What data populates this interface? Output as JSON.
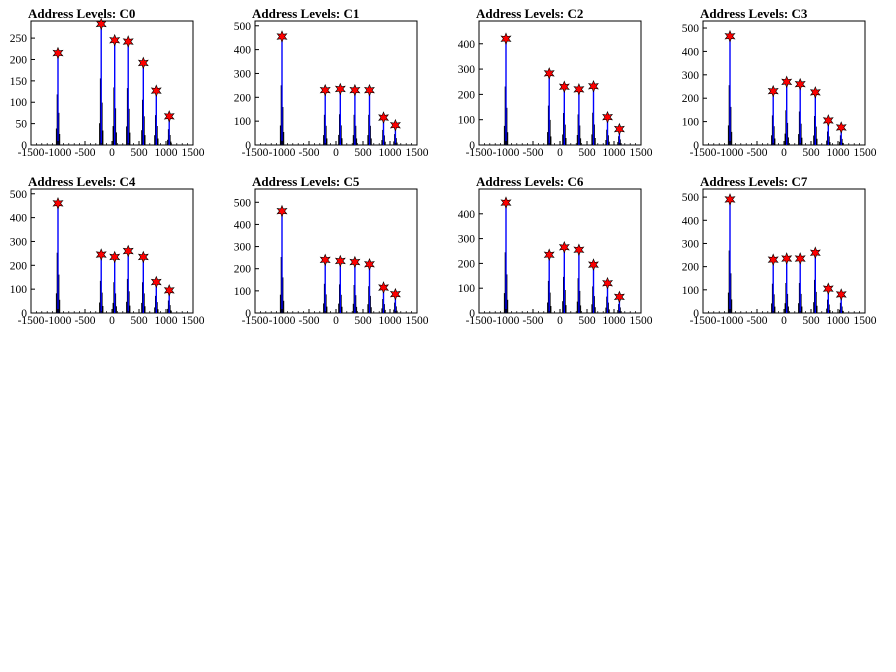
{
  "chart_data": [
    {
      "type": "histogram",
      "title": "Address Levels: C0",
      "xlim": [
        -1500,
        1500
      ],
      "ylim": [
        0,
        290
      ],
      "xticks": [
        "-1500",
        "-1000",
        "-500",
        "0",
        "500",
        "1000",
        "1500"
      ],
      "yticks": [
        "0",
        "50",
        "100",
        "150",
        "200",
        "250"
      ],
      "peaks": [
        {
          "x": -1000,
          "y": 215
        },
        {
          "x": -200,
          "y": 283
        },
        {
          "x": 50,
          "y": 245
        },
        {
          "x": 300,
          "y": 242
        },
        {
          "x": 580,
          "y": 192
        },
        {
          "x": 820,
          "y": 127
        },
        {
          "x": 1060,
          "y": 67
        }
      ]
    },
    {
      "type": "histogram",
      "title": "Address Levels: C1",
      "xlim": [
        -1500,
        1500
      ],
      "ylim": [
        0,
        520
      ],
      "xticks": [
        "-1500",
        "-1000",
        "-500",
        "0",
        "500",
        "1000",
        "1500"
      ],
      "yticks": [
        "0",
        "100",
        "200",
        "300",
        "400",
        "500"
      ],
      "peaks": [
        {
          "x": -1000,
          "y": 455
        },
        {
          "x": -200,
          "y": 230
        },
        {
          "x": 80,
          "y": 235
        },
        {
          "x": 350,
          "y": 230
        },
        {
          "x": 620,
          "y": 230
        },
        {
          "x": 880,
          "y": 115
        },
        {
          "x": 1100,
          "y": 83
        }
      ]
    },
    {
      "type": "histogram",
      "title": "Address Levels: C2",
      "xlim": [
        -1500,
        1500
      ],
      "ylim": [
        0,
        490
      ],
      "xticks": [
        "-1500",
        "-1000",
        "-500",
        "0",
        "500",
        "1000",
        "1500"
      ],
      "yticks": [
        "0",
        "100",
        "200",
        "300",
        "400"
      ],
      "peaks": [
        {
          "x": -1000,
          "y": 420
        },
        {
          "x": -200,
          "y": 283
        },
        {
          "x": 80,
          "y": 230
        },
        {
          "x": 350,
          "y": 220
        },
        {
          "x": 620,
          "y": 232
        },
        {
          "x": 880,
          "y": 110
        },
        {
          "x": 1100,
          "y": 63
        }
      ]
    },
    {
      "type": "histogram",
      "title": "Address Levels: C3",
      "xlim": [
        -1500,
        1500
      ],
      "ylim": [
        0,
        530
      ],
      "xticks": [
        "-1500",
        "-1000",
        "-500",
        "0",
        "500",
        "1000",
        "1500"
      ],
      "yticks": [
        "0",
        "100",
        "200",
        "300",
        "400",
        "500"
      ],
      "peaks": [
        {
          "x": -1000,
          "y": 465
        },
        {
          "x": -200,
          "y": 230
        },
        {
          "x": 50,
          "y": 270
        },
        {
          "x": 300,
          "y": 260
        },
        {
          "x": 580,
          "y": 225
        },
        {
          "x": 820,
          "y": 105
        },
        {
          "x": 1060,
          "y": 75
        }
      ]
    },
    {
      "type": "histogram",
      "title": "Address Levels: C4",
      "xlim": [
        -1500,
        1500
      ],
      "ylim": [
        0,
        520
      ],
      "xticks": [
        "-1500",
        "-1000",
        "-500",
        "0",
        "500",
        "1000",
        "1500"
      ],
      "yticks": [
        "0",
        "100",
        "200",
        "300",
        "400",
        "500"
      ],
      "peaks": [
        {
          "x": -1000,
          "y": 460
        },
        {
          "x": -200,
          "y": 245
        },
        {
          "x": 50,
          "y": 235
        },
        {
          "x": 300,
          "y": 260
        },
        {
          "x": 580,
          "y": 235
        },
        {
          "x": 820,
          "y": 130
        },
        {
          "x": 1060,
          "y": 95
        }
      ]
    },
    {
      "type": "histogram",
      "title": "Address Levels: C5",
      "xlim": [
        -1500,
        1500
      ],
      "ylim": [
        0,
        560
      ],
      "xticks": [
        "-1500",
        "-1000",
        "-500",
        "0",
        "500",
        "1000",
        "1500"
      ],
      "yticks": [
        "0",
        "100",
        "200",
        "300",
        "400",
        "500"
      ],
      "peaks": [
        {
          "x": -1000,
          "y": 460
        },
        {
          "x": -200,
          "y": 240
        },
        {
          "x": 80,
          "y": 235
        },
        {
          "x": 350,
          "y": 230
        },
        {
          "x": 620,
          "y": 220
        },
        {
          "x": 880,
          "y": 115
        },
        {
          "x": 1100,
          "y": 85
        }
      ]
    },
    {
      "type": "histogram",
      "title": "Address Levels: C6",
      "xlim": [
        -1500,
        1500
      ],
      "ylim": [
        0,
        500
      ],
      "xticks": [
        "-1500",
        "-1000",
        "-500",
        "0",
        "500",
        "1000",
        "1500"
      ],
      "yticks": [
        "0",
        "100",
        "200",
        "300",
        "400"
      ],
      "peaks": [
        {
          "x": -1000,
          "y": 445
        },
        {
          "x": -200,
          "y": 235
        },
        {
          "x": 80,
          "y": 265
        },
        {
          "x": 350,
          "y": 255
        },
        {
          "x": 620,
          "y": 195
        },
        {
          "x": 880,
          "y": 120
        },
        {
          "x": 1100,
          "y": 65
        }
      ]
    },
    {
      "type": "histogram",
      "title": "Address Levels: C7",
      "xlim": [
        -1500,
        1500
      ],
      "ylim": [
        0,
        535
      ],
      "xticks": [
        "-1500",
        "-1000",
        "-500",
        "0",
        "500",
        "1000",
        "1500"
      ],
      "yticks": [
        "0",
        "100",
        "200",
        "300",
        "400",
        "500"
      ],
      "peaks": [
        {
          "x": -1000,
          "y": 490
        },
        {
          "x": -200,
          "y": 230
        },
        {
          "x": 50,
          "y": 235
        },
        {
          "x": 300,
          "y": 235
        },
        {
          "x": 580,
          "y": 260
        },
        {
          "x": 820,
          "y": 105
        },
        {
          "x": 1060,
          "y": 80
        }
      ]
    }
  ],
  "colors": {
    "histogram_line": "#000000",
    "peak_line": "#0000ff",
    "marker_fill": "#ff0000",
    "marker_stroke": "#000000",
    "axis": "#000000"
  }
}
